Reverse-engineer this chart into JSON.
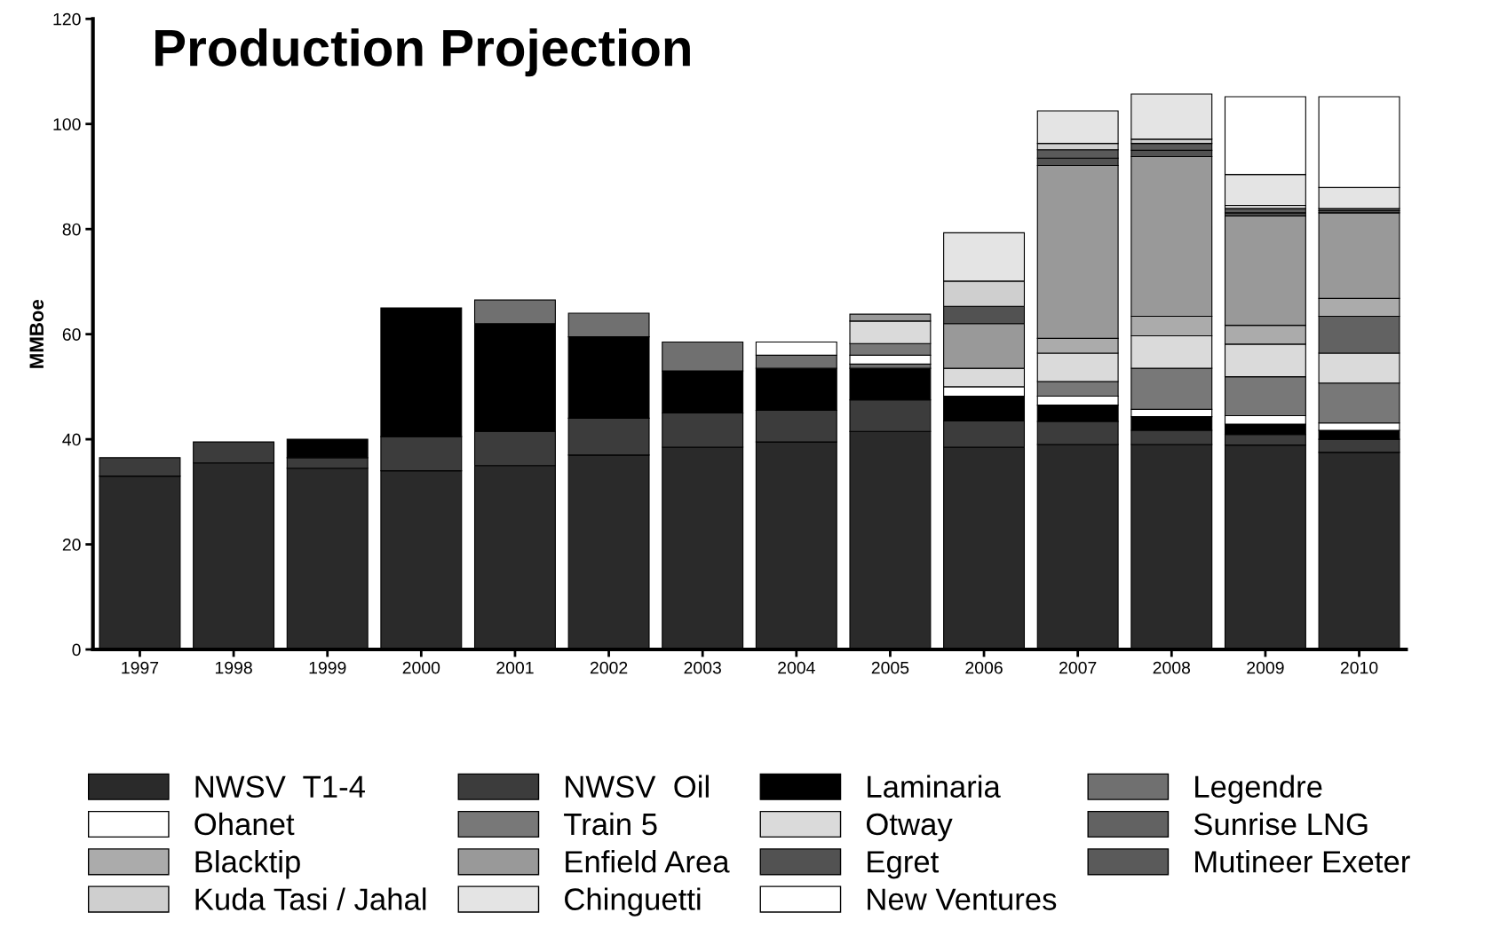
{
  "chart_data": {
    "type": "bar",
    "stacked": true,
    "title": "Production Projection",
    "ylabel": "MMBoe",
    "categories": [
      "1997",
      "1998",
      "1999",
      "2000",
      "2001",
      "2002",
      "2003",
      "2004",
      "2005",
      "2006",
      "2007",
      "2008",
      "2009",
      "2010"
    ],
    "ylim": [
      0,
      120
    ],
    "yticks": [
      0,
      20,
      40,
      60,
      80,
      100,
      120
    ],
    "grid": false,
    "legend": "bottom",
    "series": [
      {
        "name": "NWSV  T1-4",
        "color": "#2a2a2a",
        "values": [
          33,
          35.5,
          34.5,
          34,
          35,
          37,
          38.5,
          39.5,
          41.5,
          38.5,
          39,
          39,
          38.9,
          37.5
        ]
      },
      {
        "name": "NWSV  Oil",
        "color": "#3c3c3c",
        "values": [
          3.5,
          4,
          2,
          6.5,
          6.5,
          7,
          6.5,
          6,
          6,
          5,
          4.4,
          2.7,
          2,
          2.5
        ]
      },
      {
        "name": "Laminaria",
        "color": "#000000",
        "values": [
          null,
          null,
          3.5,
          24.5,
          20.5,
          15.5,
          8,
          8,
          6,
          4.7,
          3.1,
          2.6,
          2,
          1.7
        ]
      },
      {
        "name": "Legendre",
        "color": "#707070",
        "values": [
          null,
          null,
          null,
          null,
          4.5,
          4.5,
          5.5,
          2.5,
          0.8,
          null,
          null,
          null,
          null,
          null
        ]
      },
      {
        "name": "Ohanet",
        "color": "#ffffff",
        "values": [
          null,
          null,
          null,
          null,
          null,
          null,
          null,
          2.5,
          1.7,
          1.8,
          1.7,
          1.4,
          1.6,
          1.4
        ]
      },
      {
        "name": "Train 5",
        "color": "#787878",
        "values": [
          null,
          null,
          null,
          null,
          null,
          null,
          null,
          null,
          2.2,
          null,
          2.8,
          7.8,
          7.4,
          7.6
        ]
      },
      {
        "name": "Otway",
        "color": "#dadada",
        "values": [
          null,
          null,
          null,
          null,
          null,
          null,
          null,
          null,
          4.3,
          3.5,
          5.4,
          6.2,
          6.2,
          5.7
        ]
      },
      {
        "name": "Sunrise LNG",
        "color": "#626262",
        "values": [
          null,
          null,
          null,
          null,
          null,
          null,
          null,
          null,
          null,
          null,
          null,
          null,
          null,
          7
        ]
      },
      {
        "name": "Blacktip",
        "color": "#ababab",
        "values": [
          null,
          null,
          null,
          null,
          null,
          null,
          null,
          null,
          null,
          null,
          2.8,
          3.7,
          3.6,
          3.4
        ]
      },
      {
        "name": "Enfield Area",
        "color": "#999999",
        "values": [
          null,
          null,
          null,
          null,
          null,
          null,
          null,
          null,
          1.3,
          8.5,
          32.9,
          30.4,
          20.8,
          16.3
        ]
      },
      {
        "name": "Egret",
        "color": "#525252",
        "values": [
          null,
          null,
          null,
          null,
          null,
          null,
          null,
          null,
          null,
          3.3,
          1.4,
          1.2,
          0.6,
          0.4
        ]
      },
      {
        "name": "Mutineer Exeter",
        "color": "#5a5a5a",
        "values": [
          null,
          null,
          null,
          null,
          null,
          null,
          null,
          null,
          null,
          null,
          1.6,
          1.3,
          0.8,
          0.4
        ]
      },
      {
        "name": "Kuda Tasi / Jahal",
        "color": "#cfcfcf",
        "values": [
          null,
          null,
          null,
          null,
          null,
          null,
          null,
          null,
          null,
          4.8,
          1.2,
          0.8,
          0.6,
          null
        ]
      },
      {
        "name": "Chinguetti",
        "color": "#e4e4e4",
        "values": [
          null,
          null,
          null,
          null,
          null,
          null,
          null,
          null,
          null,
          9.2,
          6.2,
          8.6,
          5.9,
          4
        ]
      },
      {
        "name": "New Ventures",
        "color": "#ffffff",
        "values": [
          null,
          null,
          null,
          null,
          null,
          null,
          null,
          null,
          null,
          null,
          null,
          null,
          14.8,
          17.3
        ]
      }
    ]
  }
}
